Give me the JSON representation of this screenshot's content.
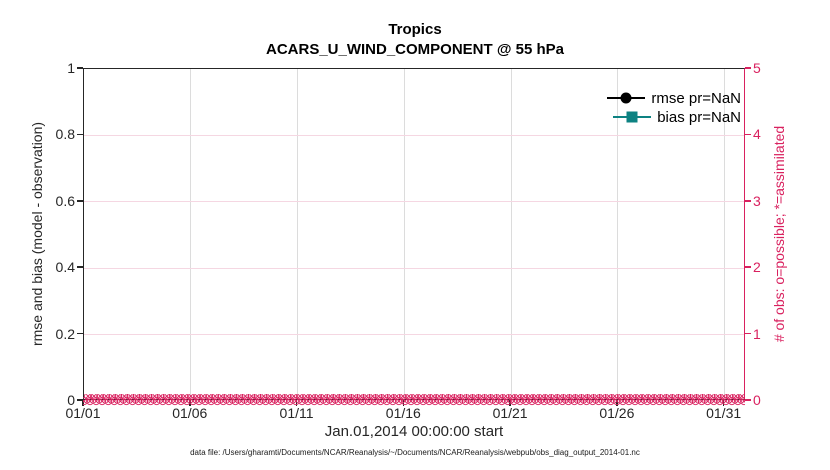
{
  "figure": {
    "title": "Tropics",
    "subtitle": "ACARS_U_WIND_COMPONENT @ 55 hPa",
    "footer": "data file: /Users/gharamti/Documents/NCAR/Reanalysis/~/Documents/NCAR/Reanalysis/webpub/obs_diag_output_2014-01.nc"
  },
  "axes": {
    "xlabel": "Jan.01,2014 00:00:00 start",
    "ylabel_left": "rmse and bias (model - observation)",
    "ylabel_right": "# of obs: o=possible; *=assimilated",
    "x_tick_labels": [
      "01/01",
      "01/06",
      "01/11",
      "01/16",
      "01/21",
      "01/26",
      "01/31"
    ],
    "x_tick_positions": [
      0,
      5,
      10,
      15,
      20,
      25,
      30
    ],
    "x_span_days": 31,
    "y_tick_labels_left": [
      "0",
      "0.2",
      "0.4",
      "0.6",
      "0.8",
      "1"
    ],
    "y_tick_labels_right": [
      "0",
      "1",
      "2",
      "3",
      "4",
      "5"
    ]
  },
  "legend": {
    "items": [
      {
        "label": "rmse pr=NaN",
        "color": "#000000",
        "marker": "circle"
      },
      {
        "label": "bias pr=NaN",
        "color": "#0d8282",
        "marker": "square"
      }
    ]
  },
  "obs_band": {
    "glyph": "⊗",
    "rows": 2,
    "per_row": 130,
    "color": "#d9215f"
  },
  "colors": {
    "axis": "#262626",
    "right_axis": "#d9215f",
    "grid_vertical": "#dcdcdc",
    "grid_horizontal": "#f5d7e2",
    "bias": "#0d8282",
    "rmse": "#000000"
  },
  "chart_data": {
    "type": "line",
    "title": "Tropics",
    "subtitle": "ACARS_U_WIND_COMPONENT @ 55 hPa",
    "xlabel": "Jan.01,2014 00:00:00 start",
    "ylabel": "rmse and bias (model - observation)",
    "ylabel_right": "# of obs: o=possible; *=assimilated",
    "x_tick_labels": [
      "01/01",
      "01/06",
      "01/11",
      "01/16",
      "01/21",
      "01/26",
      "01/31"
    ],
    "ylim_left": [
      0,
      1
    ],
    "ylim_right": [
      0,
      5
    ],
    "grid": true,
    "legend_position": "top-right-inside",
    "series": [
      {
        "name": "rmse pr=NaN",
        "axis": "left",
        "color": "#000000",
        "marker": "filled-circle",
        "values": [],
        "note": "rmse is NaN - no curve drawn"
      },
      {
        "name": "bias pr=NaN",
        "axis": "left",
        "color": "#0d8282",
        "marker": "filled-square",
        "values": [],
        "note": "bias is NaN - no curve drawn"
      },
      {
        "name": "# of obs possible (o)",
        "axis": "right",
        "color": "#d9215f",
        "marker": "o",
        "constant_value": 0,
        "x_coverage": "every assimilation time from 01/01 to 01/31"
      },
      {
        "name": "# of obs assimilated (*)",
        "axis": "right",
        "color": "#d9215f",
        "marker": "*",
        "constant_value": 0,
        "x_coverage": "every assimilation time from 01/01 to 01/31"
      }
    ]
  }
}
